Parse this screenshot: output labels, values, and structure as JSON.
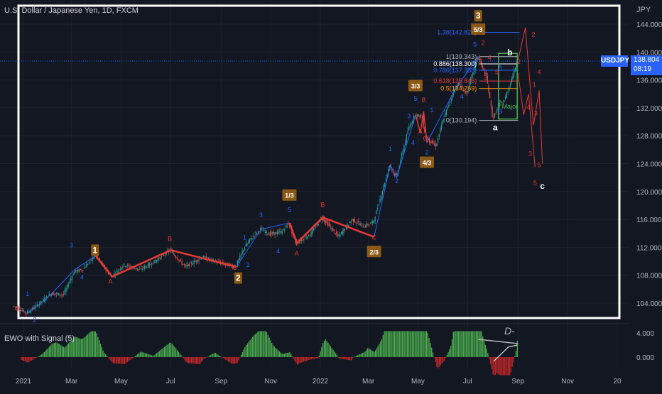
{
  "header": {
    "symbol_title": "U.S. Dollar / Japanese Yen, 1D, FXCM",
    "currency_label": "JPY"
  },
  "price_badge": {
    "ticker": "USDJPY",
    "price": "138.804",
    "countdown": "08:19",
    "color": "#2962ff"
  },
  "indicator": {
    "title": "EWO with Signal (5)",
    "axis_ticks": [
      "4.000",
      "0.000"
    ],
    "annotation": "D-"
  },
  "colors": {
    "background": "#131722",
    "up_candle": "#26a69a",
    "down_candle": "#ef5350",
    "blue_wave": "#2962ff",
    "red_wave": "#e53935",
    "orange_label_bg": "#8d5a16",
    "histogram_green": "#4caf50",
    "histogram_red": "#c62828",
    "frame": "#ffffff"
  },
  "chart_data": {
    "type": "line",
    "title": "U.S. Dollar / Japanese Yen, 1D, FXCM",
    "series_label": "USDJPY daily price",
    "yunit": "JPY",
    "ylim": [
      102.0,
      146.0
    ],
    "y_ticks": [
      "144.000",
      "140.000",
      "136.000",
      "132.000",
      "128.000",
      "124.000",
      "120.000",
      "116.000",
      "112.000",
      "108.000",
      "104.000"
    ],
    "x_ticks": [
      "2021",
      "Mar",
      "May",
      "Jul",
      "Sep",
      "Nov",
      "2022",
      "Mar",
      "May",
      "Jul",
      "Sep",
      "Nov",
      "20"
    ],
    "price_path": [
      [
        "2020-12-20",
        103.6
      ],
      [
        "2021-01-06",
        102.6
      ],
      [
        "2021-01-20",
        103.8
      ],
      [
        "2021-02-05",
        105.4
      ],
      [
        "2021-02-20",
        105.2
      ],
      [
        "2021-03-05",
        108.5
      ],
      [
        "2021-03-15",
        108.8
      ],
      [
        "2021-03-31",
        110.8
      ],
      [
        "2021-04-20",
        107.8
      ],
      [
        "2021-05-05",
        109.5
      ],
      [
        "2021-05-25",
        108.8
      ],
      [
        "2021-06-10",
        109.8
      ],
      [
        "2021-07-01",
        111.6
      ],
      [
        "2021-07-20",
        109.2
      ],
      [
        "2021-08-10",
        110.6
      ],
      [
        "2021-08-30",
        109.8
      ],
      [
        "2021-09-20",
        109.2
      ],
      [
        "2021-09-30",
        111.9
      ],
      [
        "2021-10-10",
        113.5
      ],
      [
        "2021-10-20",
        114.6
      ],
      [
        "2021-11-01",
        113.9
      ],
      [
        "2021-11-15",
        114.2
      ],
      [
        "2021-11-24",
        115.5
      ],
      [
        "2021-12-03",
        112.6
      ],
      [
        "2021-12-20",
        113.8
      ],
      [
        "2022-01-04",
        116.3
      ],
      [
        "2022-01-24",
        113.5
      ],
      [
        "2022-02-10",
        116.0
      ],
      [
        "2022-02-24",
        115.0
      ],
      [
        "2022-03-08",
        115.6
      ],
      [
        "2022-03-28",
        123.8
      ],
      [
        "2022-04-05",
        122.0
      ],
      [
        "2022-04-20",
        129.0
      ],
      [
        "2022-04-28",
        131.0
      ],
      [
        "2022-05-06",
        130.8
      ],
      [
        "2022-05-12",
        127.7
      ],
      [
        "2022-05-24",
        126.5
      ],
      [
        "2022-06-01",
        130.0
      ],
      [
        "2022-06-15",
        134.5
      ],
      [
        "2022-06-20",
        135.5
      ],
      [
        "2022-07-01",
        134.0
      ],
      [
        "2022-07-14",
        139.4
      ],
      [
        "2022-07-25",
        136.5
      ],
      [
        "2022-08-02",
        130.4
      ],
      [
        "2022-08-10",
        132.5
      ],
      [
        "2022-08-16",
        133.0
      ],
      [
        "2022-08-26",
        136.5
      ],
      [
        "2022-09-01",
        138.8
      ]
    ],
    "fibonacci_levels": [
      {
        "ratio": "1.38",
        "price": "142.826",
        "label": "1.38(142.826)",
        "color": "#2962ff"
      },
      {
        "ratio": "1",
        "price": "139.343",
        "label": "1(139.343)",
        "color": "#b2b5be"
      },
      {
        "ratio": "0.886",
        "price": "138.300",
        "label": "0.886(138.300)",
        "color": "#ffffff"
      },
      {
        "ratio": "0.786",
        "price": "137.388",
        "label": "0.786(137.388)",
        "color": "#2962ff"
      },
      {
        "ratio": "0.618",
        "price": "135.846",
        "label": "0.618(135.846)",
        "color": "#e53935"
      },
      {
        "ratio": "0.5",
        "price": "134.769",
        "label": "0.5(134.769)",
        "color": "#ff9800"
      },
      {
        "ratio": "0",
        "price": "130.194",
        "label": "0(130.194)",
        "color": "#b2b5be"
      }
    ],
    "wave_degree_labels": [
      {
        "text": "1",
        "date": "2021-03-30",
        "price": 111.6
      },
      {
        "text": "2",
        "date": "2021-09-22",
        "price": 107.6
      },
      {
        "text": "1/3",
        "date": "2021-11-24",
        "price": 119.5
      },
      {
        "text": "2/3",
        "date": "2022-03-08",
        "price": 111.4
      },
      {
        "text": "3/3",
        "date": "2022-04-28",
        "price": 135.2
      },
      {
        "text": "4/3",
        "date": "2022-05-12",
        "price": 124.2
      },
      {
        "text": "3",
        "date": "2022-07-14",
        "price": 145.2
      },
      {
        "text": "5/3",
        "date": "2022-07-14",
        "price": 143.3
      }
    ],
    "minor_labels": [
      {
        "text": "1",
        "date": "2021-01-06",
        "price": 105.0,
        "color": "blue"
      },
      {
        "text": "2",
        "date": "2021-01-15",
        "price": 101.3,
        "color": "blue"
      },
      {
        "text": "3",
        "date": "2021-03-01",
        "price": 112.0,
        "color": "blue"
      },
      {
        "text": "4",
        "date": "2021-03-14",
        "price": 107.4,
        "color": "blue"
      },
      {
        "text": "A",
        "date": "2021-04-18",
        "price": 106.8,
        "color": "red"
      },
      {
        "text": "B",
        "date": "2021-06-30",
        "price": 112.9,
        "color": "red"
      },
      {
        "text": "C",
        "date": "2021-09-18",
        "price": 108.8,
        "color": "red"
      },
      {
        "text": "1",
        "date": "2021-09-30",
        "price": 113.1,
        "color": "blue"
      },
      {
        "text": "2",
        "date": "2021-10-04",
        "price": 109.2,
        "color": "blue"
      },
      {
        "text": "3",
        "date": "2021-10-20",
        "price": 116.3,
        "color": "blue"
      },
      {
        "text": "4",
        "date": "2021-11-10",
        "price": 111.1,
        "color": "blue"
      },
      {
        "text": "5",
        "date": "2021-11-24",
        "price": 117.1,
        "color": "blue"
      },
      {
        "text": "A",
        "date": "2021-12-03",
        "price": 110.8,
        "color": "red"
      },
      {
        "text": "B",
        "date": "2022-01-04",
        "price": 117.8,
        "color": "red"
      },
      {
        "text": "C",
        "date": "2022-03-08",
        "price": 113.1,
        "color": "red"
      },
      {
        "text": "1",
        "date": "2022-03-28",
        "price": 125.8,
        "color": "blue"
      },
      {
        "text": "2",
        "date": "2022-04-05",
        "price": 121.2,
        "color": "blue"
      },
      {
        "text": "3",
        "date": "2022-04-20",
        "price": 130.5,
        "color": "blue"
      },
      {
        "text": "4",
        "date": "2022-04-25",
        "price": 126.7,
        "color": "blue"
      },
      {
        "text": "5",
        "date": "2022-04-28",
        "price": 133.0,
        "color": "blue"
      },
      {
        "text": "A",
        "date": "2022-05-04",
        "price": 128.3,
        "color": "red"
      },
      {
        "text": "B",
        "date": "2022-05-08",
        "price": 132.8,
        "color": "red"
      },
      {
        "text": "C",
        "date": "2022-05-10",
        "price": 127.3,
        "color": "red"
      },
      {
        "text": "1",
        "date": "2022-05-18",
        "price": 131.4,
        "color": "blue"
      },
      {
        "text": "2",
        "date": "2022-05-12",
        "price": 125.3,
        "color": "blue"
      },
      {
        "text": "4",
        "date": "2022-06-24",
        "price": 133.3,
        "color": "blue"
      },
      {
        "text": "5",
        "date": "2022-07-10",
        "price": 140.8,
        "color": "blue"
      },
      {
        "text": "1",
        "date": "2022-07-16",
        "price": 138.9,
        "color": "red"
      },
      {
        "text": "2",
        "date": "2022-07-20",
        "price": 141.0,
        "color": "red"
      },
      {
        "text": "3",
        "date": "2022-07-23",
        "price": 136.0,
        "color": "red"
      },
      {
        "text": "4",
        "date": "2022-07-28",
        "price": 138.9,
        "color": "red"
      },
      {
        "text": "5",
        "date": "2022-08-06",
        "price": 136.8,
        "color": "red"
      },
      {
        "text": "A",
        "date": "2022-08-10",
        "price": 137.5,
        "color": "blue"
      },
      {
        "text": "B",
        "date": "2022-08-10",
        "price": 131.2,
        "color": "blue"
      },
      {
        "text": "a",
        "date": "2022-08-04",
        "price": 128.8,
        "color": "white"
      },
      {
        "text": "b",
        "date": "2022-08-22",
        "price": 139.5,
        "color": "white"
      },
      {
        "text": "Major",
        "date": "2022-08-22",
        "price": 131.9,
        "color": "green"
      }
    ],
    "projection": {
      "target_label": "c",
      "path_labels": [
        {
          "text": "2",
          "date": "2022-09-20",
          "price": 142.2
        },
        {
          "text": "2",
          "date": "2022-09-02",
          "price": 138.3
        },
        {
          "text": "4",
          "date": "2022-09-27",
          "price": 136.8
        },
        {
          "text": "1",
          "date": "2022-09-21",
          "price": 135.0
        },
        {
          "text": "4",
          "date": "2022-09-14",
          "price": 131.8
        },
        {
          "text": "3",
          "date": "2022-09-23",
          "price": 130.9
        },
        {
          "text": "3",
          "date": "2022-09-16",
          "price": 125.1
        },
        {
          "text": "5",
          "date": "2022-09-27",
          "price": 123.5
        },
        {
          "text": "5",
          "date": "2022-09-22",
          "price": 120.9
        }
      ]
    }
  }
}
